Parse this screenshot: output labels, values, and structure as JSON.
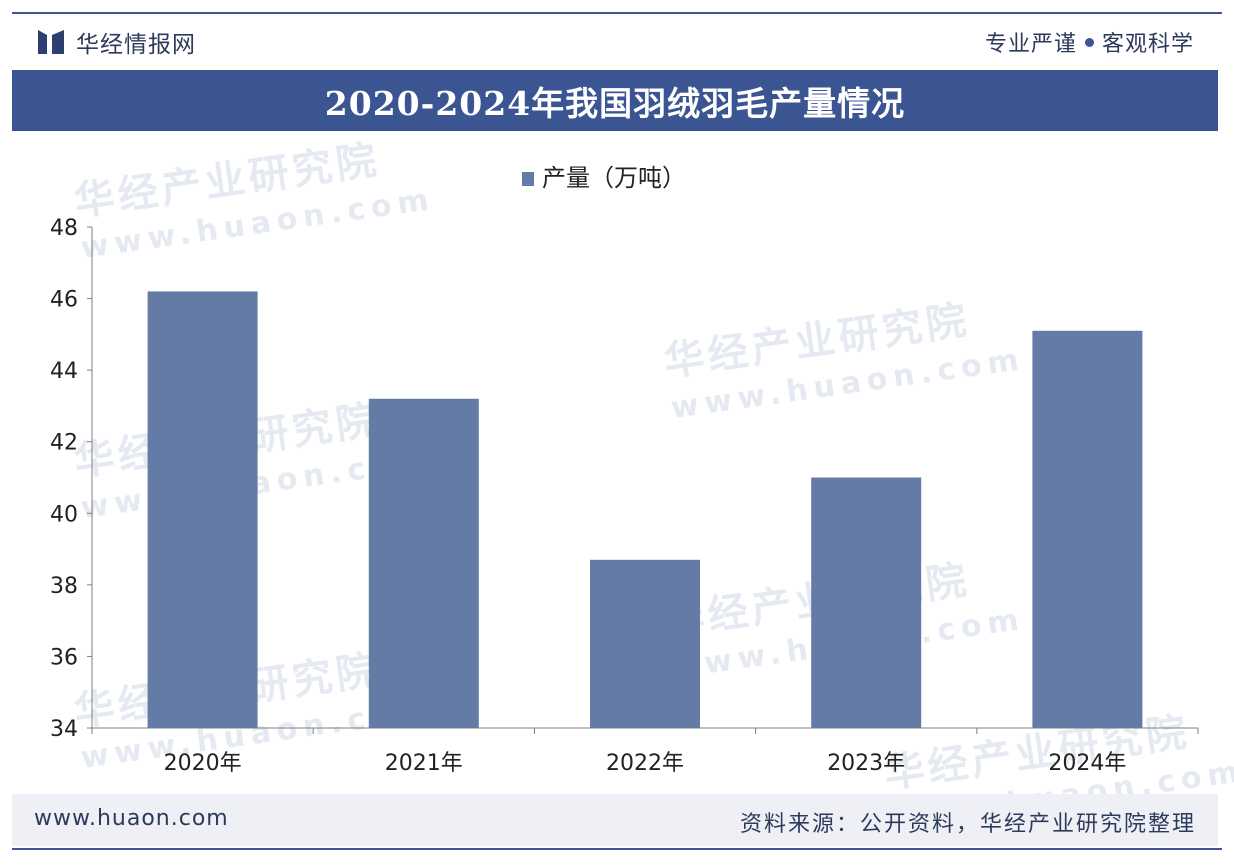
{
  "header": {
    "brand_name": "华经情报网",
    "slogan_left": "专业严谨",
    "slogan_right": "客观科学"
  },
  "title": "2020-2024年我国羽绒羽毛产量情况",
  "watermark": {
    "cn": "华经产业研究院",
    "en": "www.huaon.com"
  },
  "chart_data": {
    "type": "bar",
    "categories": [
      "2020年",
      "2021年",
      "2022年",
      "2023年",
      "2024年"
    ],
    "series": [
      {
        "name": "产量（万吨）",
        "values": [
          46.2,
          43.2,
          38.7,
          41.0,
          45.1
        ]
      }
    ],
    "ylim": [
      34,
      48
    ],
    "yticks": [
      34,
      36,
      38,
      40,
      42,
      44,
      46,
      48
    ],
    "legend_position": "top-center",
    "grid": false,
    "bar_color": "#647ba6"
  },
  "footer": {
    "url": "www.huaon.com",
    "source": "资料来源：公开资料，华经产业研究院整理"
  },
  "colors": {
    "accent": "#3b5592",
    "text": "#2d3a5c"
  }
}
